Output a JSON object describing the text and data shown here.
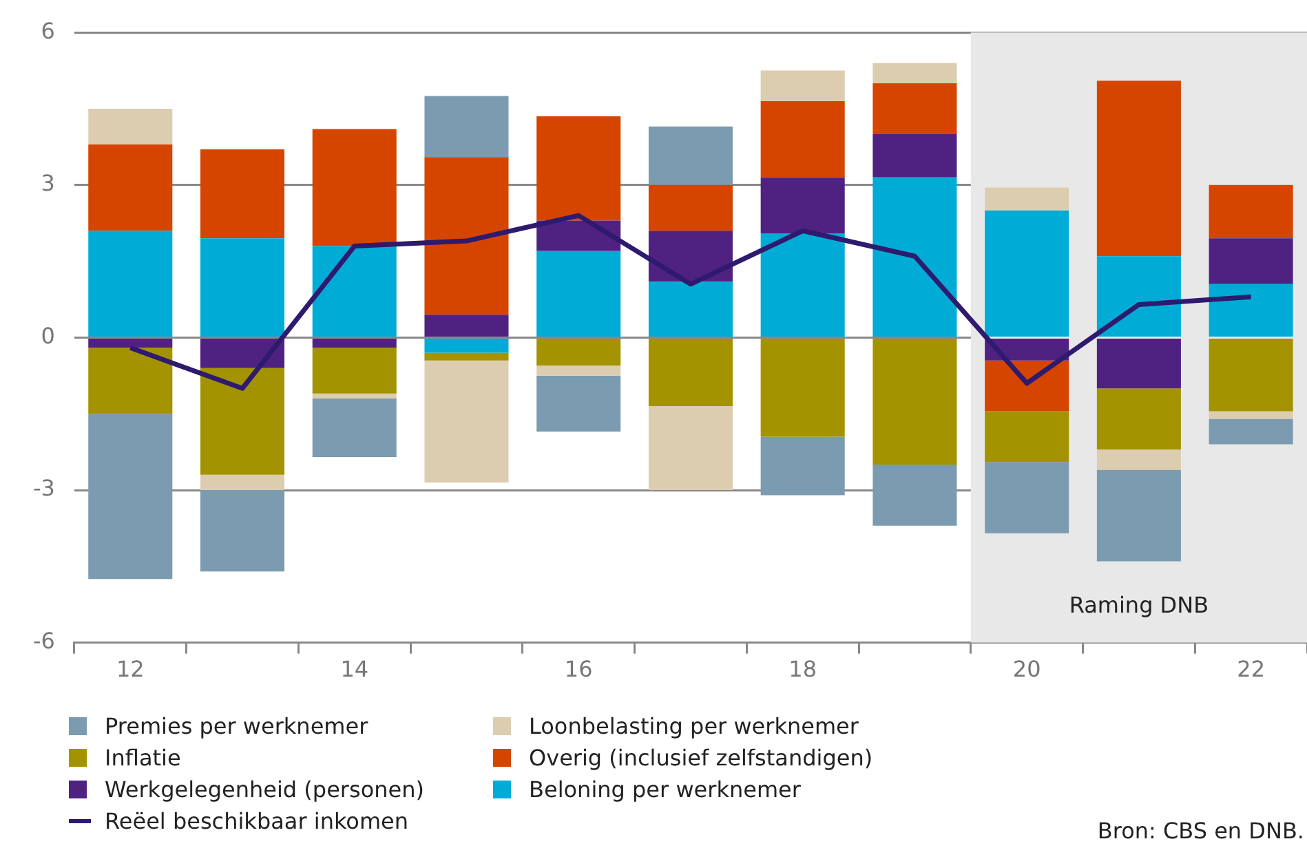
{
  "chart_data": {
    "type": "bar",
    "stacked": true,
    "categories": [
      "12",
      null,
      "14",
      null,
      "16",
      null,
      "18",
      null,
      "20",
      null,
      "22"
    ],
    "series": [
      {
        "name": "Beloning per werknemer",
        "color": "#00acd6",
        "values": [
          2.1,
          1.95,
          1.8,
          -0.3,
          1.7,
          1.1,
          2.05,
          3.15,
          2.5,
          1.6,
          1.05
        ]
      },
      {
        "name": "Werkgelegenheid (personen)",
        "color": "#4f2282",
        "values": [
          -0.2,
          -0.6,
          -0.2,
          0.45,
          0.6,
          1.0,
          1.1,
          0.85,
          -0.45,
          -1.0,
          0.9
        ]
      },
      {
        "name": "Overig (inclusief zelfstandigen)",
        "color": "#d54500",
        "values": [
          1.7,
          1.75,
          2.3,
          3.1,
          2.05,
          0.9,
          1.5,
          1.0,
          -1.0,
          3.45,
          1.05
        ]
      },
      {
        "name": "Inflatie",
        "color": "#a39300",
        "values": [
          -1.3,
          -2.1,
          -0.9,
          -0.15,
          -0.55,
          -1.35,
          -1.95,
          -2.5,
          -1.0,
          -1.2,
          -1.45
        ]
      },
      {
        "name": "Loonbelasting per werknemer",
        "color": "#ddcdb0",
        "values": [
          0.7,
          -0.3,
          -0.1,
          -2.4,
          -0.2,
          -1.65,
          0.6,
          0.4,
          0.45,
          -0.4,
          -0.15
        ]
      },
      {
        "name": "Premies per werknemer",
        "color": "#7b9bb0",
        "values": [
          -3.25,
          -1.6,
          -1.15,
          1.2,
          -1.1,
          1.15,
          -1.15,
          -1.2,
          -1.4,
          -1.8,
          -0.5
        ]
      },
      {
        "name": "Reëel beschikbaar inkomen",
        "type": "line",
        "color": "#2e1a6e",
        "values": [
          -0.2,
          -1.0,
          1.8,
          1.9,
          2.4,
          1.05,
          2.1,
          1.6,
          -0.9,
          0.65,
          0.8
        ]
      }
    ],
    "ylim": [
      -6,
      6
    ],
    "yticks": [
      -6,
      -3,
      0,
      3,
      6
    ],
    "grid": "y",
    "legend": "bottom",
    "marker": "none",
    "bands": [
      {
        "axis": "x",
        "from": "20",
        "to": "22",
        "label": "Raming DNB",
        "color": "#e8e8e8"
      }
    ],
    "annotations": [
      "Bron: CBS en DNB."
    ]
  }
}
